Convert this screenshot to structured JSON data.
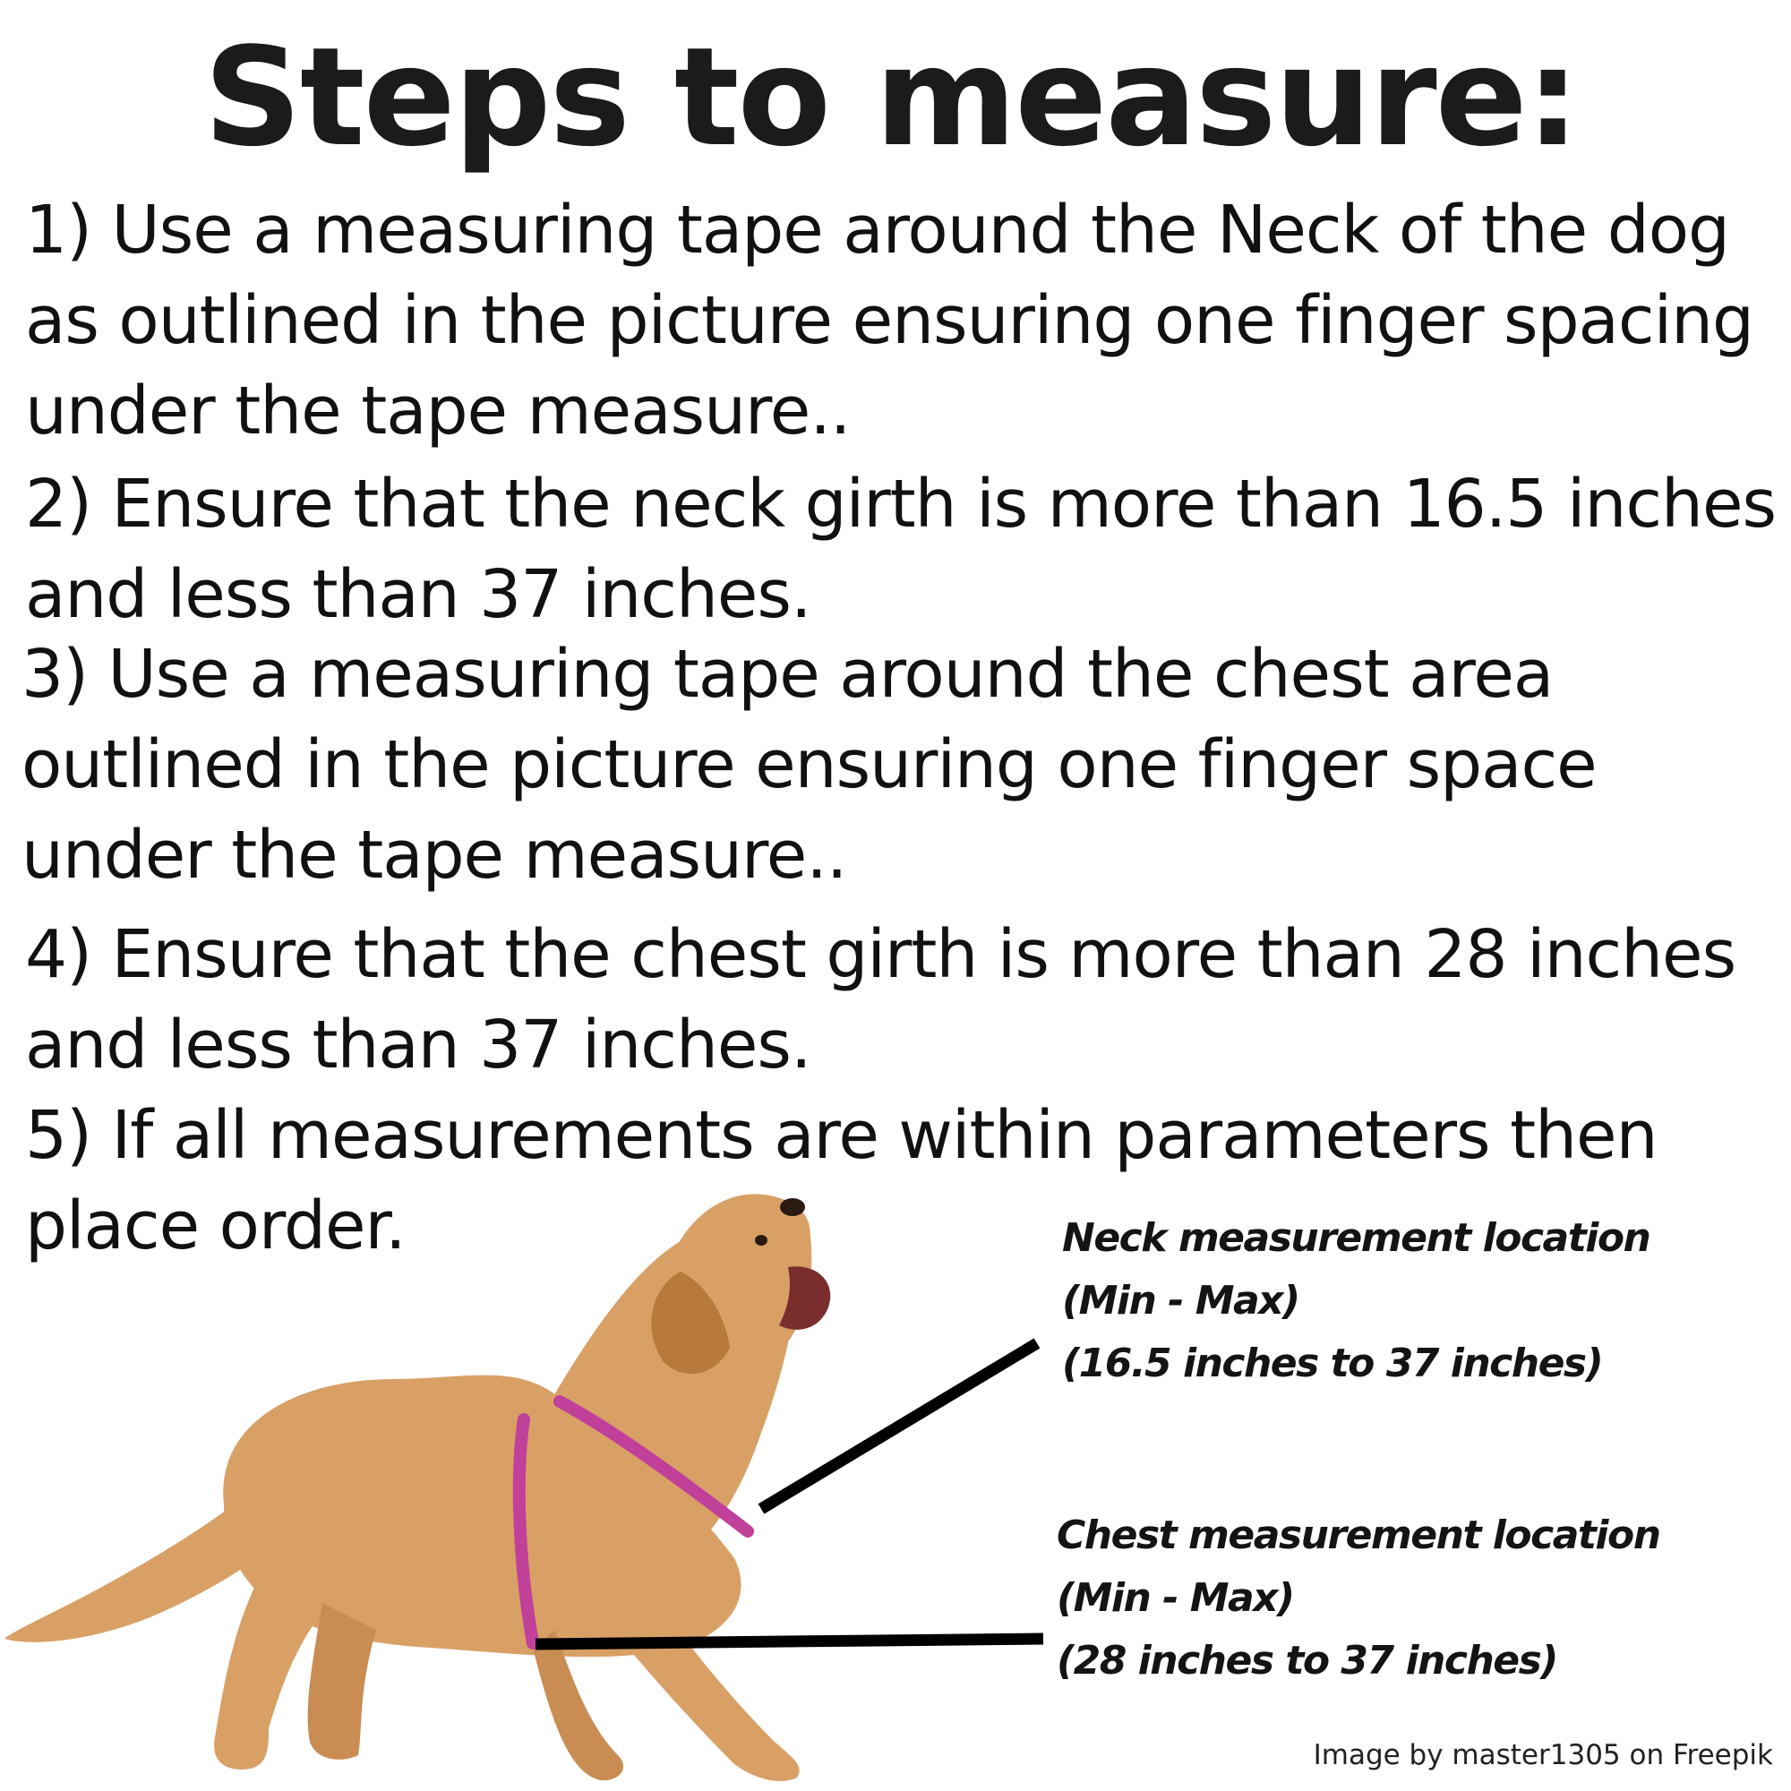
{
  "title": "Steps to measure:",
  "steps": [
    {
      "lines": [
        "1) Use a measuring tape around the Neck of the dog",
        "as outlined in the picture ensuring one finger spacing",
        "under the tape measure.."
      ]
    },
    {
      "lines": [
        "2) Ensure that the neck girth is more than 16.5 inches",
        "and less than 37 inches."
      ]
    },
    {
      "lines": [
        "3) Use a measuring tape around the chest area",
        "outlined in the picture ensuring one finger space",
        "under the tape measure.."
      ]
    },
    {
      "lines": [
        "4) Ensure that the chest girth is more than 28 inches",
        "and less than 37 inches."
      ]
    },
    {
      "lines": [
        "5) If all measurements are within parameters then",
        "place order."
      ]
    }
  ],
  "callouts": {
    "neck": {
      "title": "Neck measurement location",
      "range_label": "(Min - Max)",
      "range": "(16.5 inches to 37 inches)"
    },
    "chest": {
      "title": "Chest measurement location",
      "range_label": "(Min - Max)",
      "range": "(28 inches to 37 inches)"
    }
  },
  "credit": "Image by master1305 on Freepik",
  "colors": {
    "text": "#111111",
    "fur": "#d9a066",
    "fur_shade": "#b87a3c",
    "measure_line": "#c0409a",
    "pointer_line": "#000000"
  },
  "icons": {
    "illustration": "dog-with-harness-lines-icon"
  }
}
